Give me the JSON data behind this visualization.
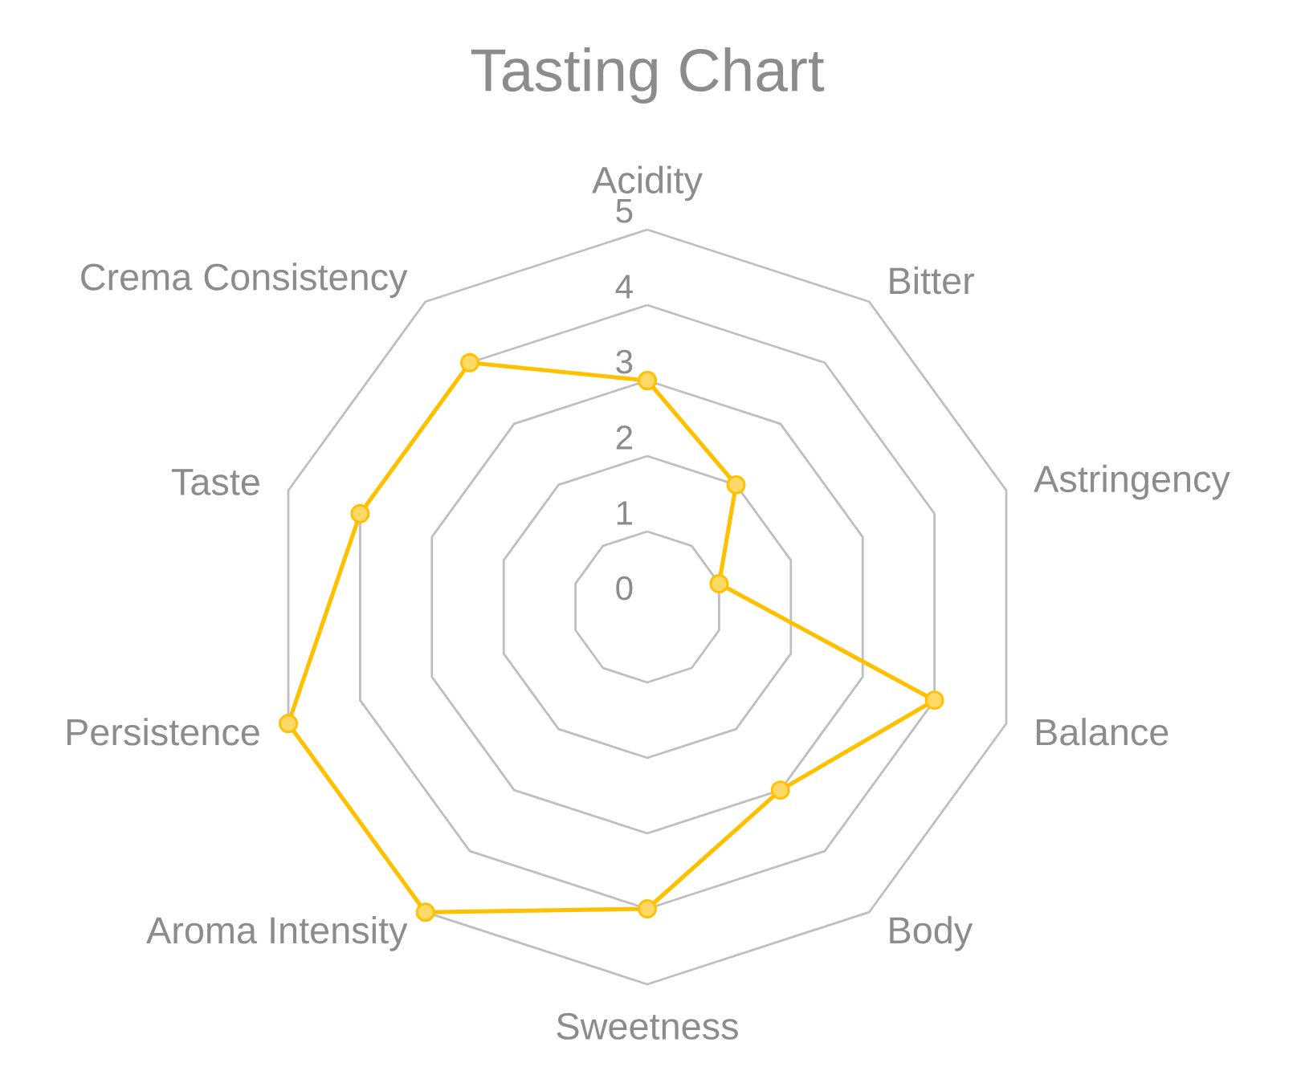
{
  "chart_data": {
    "type": "radar",
    "title": "Tasting Chart",
    "categories": [
      "Acidity",
      "Bitter",
      "Astringency",
      "Balance",
      "Body",
      "Sweetness",
      "Aroma Intensity",
      "Persistence",
      "Taste",
      "Crema Consistency"
    ],
    "series": [
      {
        "color": "#ffc000",
        "values": [
          3,
          2,
          1,
          4,
          3,
          4,
          5,
          5,
          4,
          4
        ]
      }
    ],
    "ylim": [
      0,
      5
    ],
    "yticks": [
      0,
      1,
      2,
      3,
      4,
      5
    ],
    "grid": true,
    "marker": "circle",
    "line_style": "solid"
  }
}
